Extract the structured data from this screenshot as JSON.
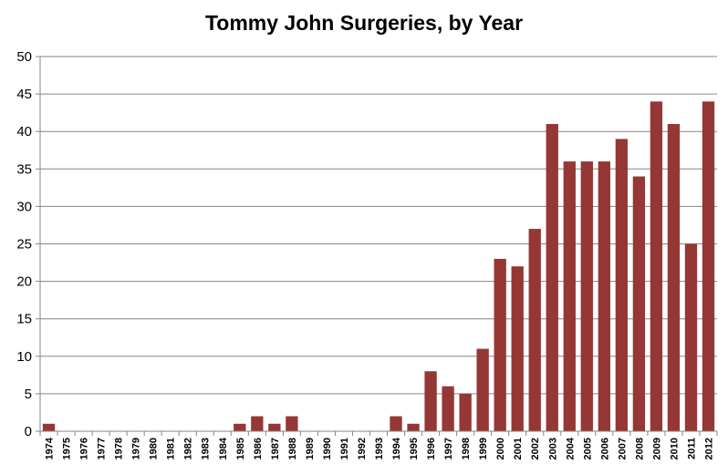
{
  "chart_data": {
    "type": "bar",
    "title": "Tommy John Surgeries, by Year",
    "xlabel": "",
    "ylabel": "",
    "ylim": [
      0,
      50
    ],
    "yticks": [
      0,
      5,
      10,
      15,
      20,
      25,
      30,
      35,
      40,
      45,
      50
    ],
    "grid": true,
    "legend": "none",
    "bar_color": "#953735",
    "categories": [
      "1974",
      "1975",
      "1976",
      "1977",
      "1978",
      "1979",
      "1980",
      "1981",
      "1982",
      "1983",
      "1984",
      "1985",
      "1986",
      "1987",
      "1988",
      "1989",
      "1990",
      "1991",
      "1992",
      "1993",
      "1994",
      "1995",
      "1996",
      "1997",
      "1998",
      "1999",
      "2000",
      "2001",
      "2002",
      "2003",
      "2004",
      "2005",
      "2006",
      "2007",
      "2008",
      "2009",
      "2010",
      "2011",
      "2012"
    ],
    "values": [
      1,
      0,
      0,
      0,
      0,
      0,
      0,
      0,
      0,
      0,
      0,
      1,
      2,
      1,
      2,
      0,
      0,
      0,
      0,
      0,
      2,
      1,
      8,
      6,
      5,
      11,
      23,
      22,
      27,
      41,
      36,
      36,
      36,
      39,
      34,
      44,
      41,
      25,
      44
    ]
  }
}
